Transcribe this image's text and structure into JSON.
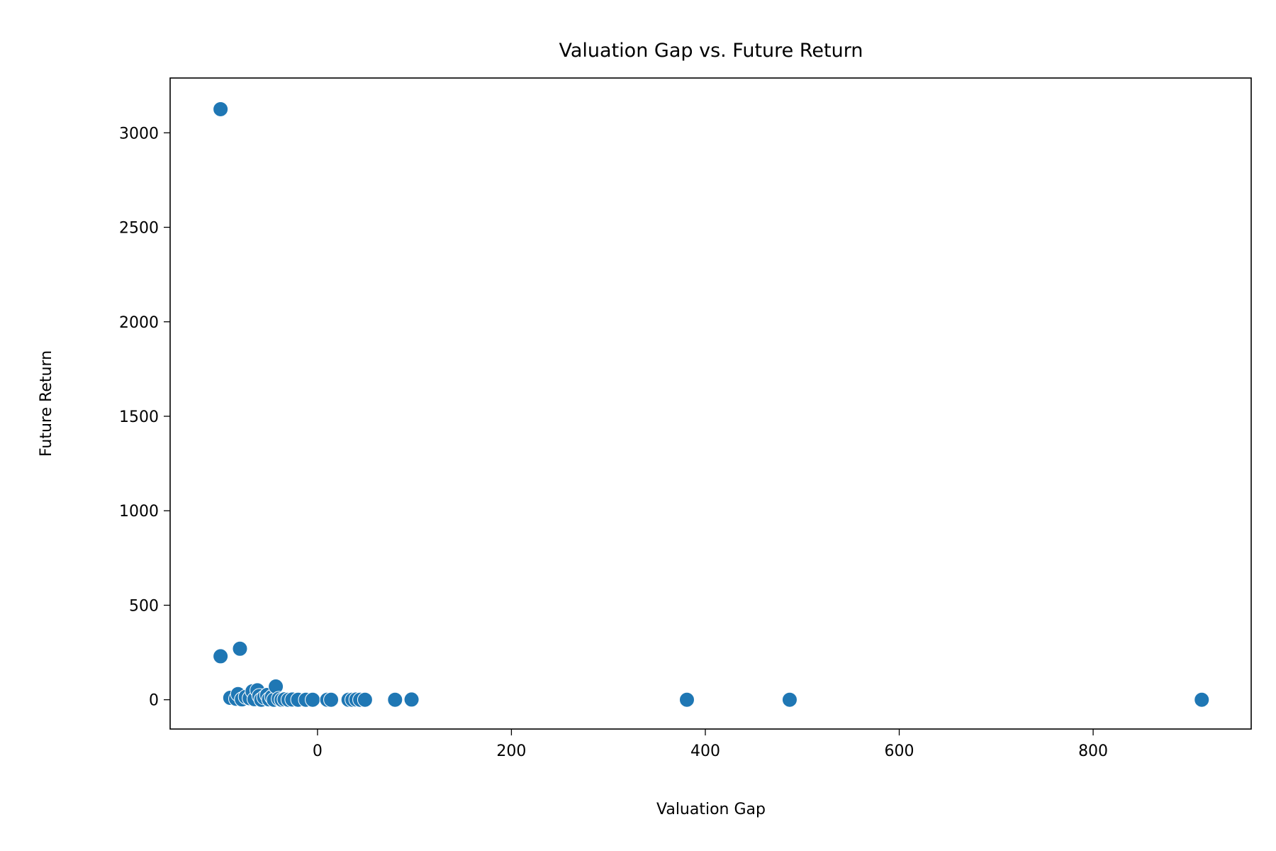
{
  "chart_data": {
    "type": "scatter",
    "title": "Valuation Gap vs. Future Return",
    "xlabel": "Valuation Gap",
    "ylabel": "Future Return",
    "xlim": [
      -152,
      963
    ],
    "ylim": [
      -155,
      3290
    ],
    "xticks": [
      0,
      200,
      400,
      600,
      800
    ],
    "yticks": [
      0,
      500,
      1000,
      1500,
      2000,
      2500,
      3000
    ],
    "grid": false,
    "color": "#1f77b4",
    "points": [
      {
        "x": -100,
        "y": 3125
      },
      {
        "x": -100,
        "y": 230
      },
      {
        "x": -80,
        "y": 270
      },
      {
        "x": -90,
        "y": 10
      },
      {
        "x": -84,
        "y": 5
      },
      {
        "x": -82,
        "y": 30
      },
      {
        "x": -78,
        "y": 2
      },
      {
        "x": -74,
        "y": 15
      },
      {
        "x": -70,
        "y": 8
      },
      {
        "x": -67,
        "y": 45
      },
      {
        "x": -65,
        "y": 3
      },
      {
        "x": -62,
        "y": 50
      },
      {
        "x": -60,
        "y": 20
      },
      {
        "x": -58,
        "y": 0
      },
      {
        "x": -55,
        "y": 12
      },
      {
        "x": -52,
        "y": 25
      },
      {
        "x": -50,
        "y": 2
      },
      {
        "x": -47,
        "y": 15
      },
      {
        "x": -45,
        "y": 0
      },
      {
        "x": -43,
        "y": 70
      },
      {
        "x": -40,
        "y": 5
      },
      {
        "x": -37,
        "y": 0
      },
      {
        "x": -34,
        "y": 2
      },
      {
        "x": -30,
        "y": 0
      },
      {
        "x": -26,
        "y": 1
      },
      {
        "x": -20,
        "y": 0
      },
      {
        "x": -12,
        "y": 0
      },
      {
        "x": -5,
        "y": 0
      },
      {
        "x": 10,
        "y": 0
      },
      {
        "x": 14,
        "y": 0
      },
      {
        "x": 32,
        "y": 0
      },
      {
        "x": 36,
        "y": 0
      },
      {
        "x": 40,
        "y": 1
      },
      {
        "x": 44,
        "y": 0
      },
      {
        "x": 49,
        "y": 0
      },
      {
        "x": 80,
        "y": 0
      },
      {
        "x": 97,
        "y": 1
      },
      {
        "x": 381,
        "y": 0
      },
      {
        "x": 487,
        "y": 0
      },
      {
        "x": 912,
        "y": 0
      }
    ]
  }
}
